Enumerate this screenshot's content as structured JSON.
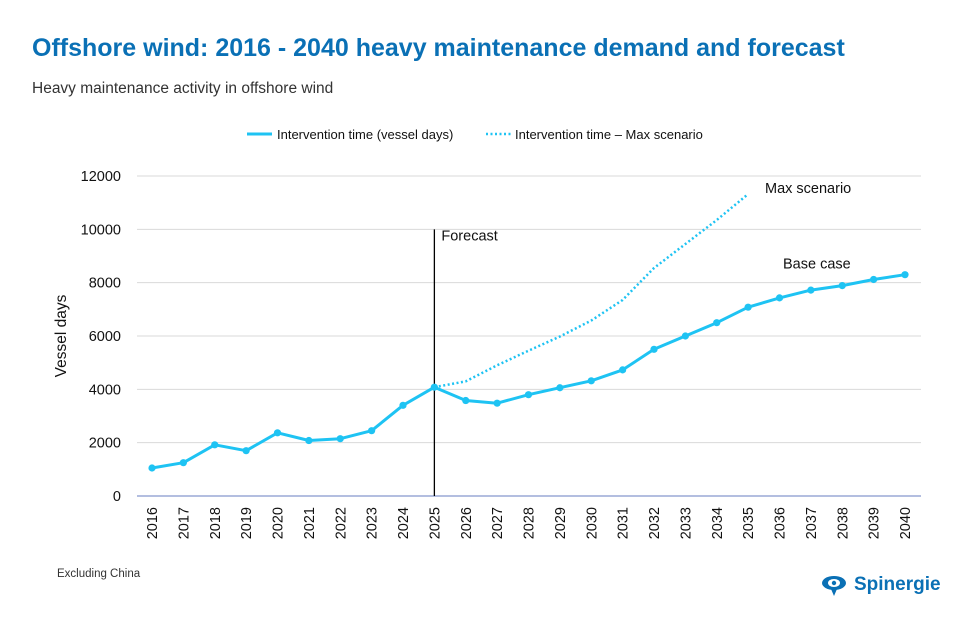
{
  "header": {
    "title": "Offshore wind: 2016 - 2040 heavy maintenance demand and forecast",
    "subtitle": "Heavy maintenance activity in offshore wind"
  },
  "footnote": "Excluding China",
  "brand": {
    "name": "Spinergie",
    "color": "#0a70b5",
    "icon": "spinergie-logo-icon"
  },
  "colors": {
    "series": "#1ec3f3",
    "grid": "#d9d9d9",
    "axis": "#9aa9d6",
    "forecast_line": "#000000"
  },
  "chart_data": {
    "type": "line",
    "ylabel": "Vessel days",
    "ylim": [
      0,
      12000
    ],
    "yticks": [
      0,
      2000,
      4000,
      6000,
      8000,
      10000,
      12000
    ],
    "grid": true,
    "legend_position": "top",
    "x": [
      2016,
      2017,
      2018,
      2019,
      2020,
      2021,
      2022,
      2023,
      2024,
      2025,
      2026,
      2027,
      2028,
      2029,
      2030,
      2031,
      2032,
      2033,
      2034,
      2035,
      2036,
      2037,
      2038,
      2039,
      2040
    ],
    "series": [
      {
        "name": "Intervention time (vessel days)",
        "style": "solid",
        "x": [
          2016,
          2017,
          2018,
          2019,
          2020,
          2021,
          2022,
          2023,
          2024,
          2025,
          2026,
          2027,
          2028,
          2029,
          2030,
          2031,
          2032,
          2033,
          2034,
          2035,
          2036,
          2037,
          2038,
          2039,
          2040
        ],
        "values": [
          1050,
          1250,
          1920,
          1700,
          2370,
          2080,
          2150,
          2450,
          3400,
          4080,
          3580,
          3480,
          3800,
          4060,
          4320,
          4730,
          5500,
          6000,
          6500,
          7080,
          7430,
          7720,
          7890,
          8120,
          8300
        ]
      },
      {
        "name": "Intervention time – Max scenario",
        "style": "dotted",
        "x": [
          2025,
          2026,
          2027,
          2028,
          2029,
          2030,
          2031,
          2032,
          2033,
          2034,
          2035
        ],
        "values": [
          4080,
          4300,
          4900,
          5450,
          5980,
          6580,
          7350,
          8550,
          9450,
          10350,
          11320
        ]
      }
    ],
    "annotations": {
      "forecast": {
        "label": "Forecast",
        "x": 2025
      },
      "max_scenario": {
        "label": "Max scenario"
      },
      "base_case": {
        "label": "Base case"
      }
    }
  }
}
